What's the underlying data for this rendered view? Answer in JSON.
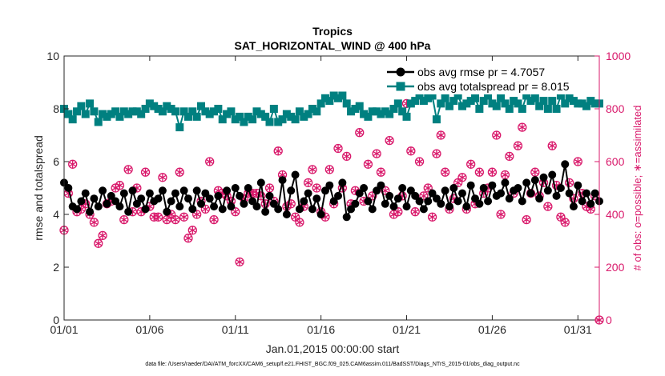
{
  "chart_data": {
    "type": "line",
    "title": "Tropics",
    "subtitle": "SAT_HORIZONTAL_WIND @ 400 hPa",
    "xlabel": "Jan.01,2015 00:00:00 start",
    "ylabel_left": "rmse and totalspread",
    "ylabel_right": "# of obs: o=possible; ∗=assimilated",
    "footnote": "data file: /Users/raeder/DAI/ATM_forcXX/CAM6_setup/f.e21.FHIST_BGC.f09_025.CAM6assim.011/BadSST/Diags_NTrS_2015-01/obs_diag_output.nc",
    "x_ticks": [
      {
        "day": 0,
        "label": "01/01"
      },
      {
        "day": 5,
        "label": "01/06"
      },
      {
        "day": 10,
        "label": "01/11"
      },
      {
        "day": 15,
        "label": "01/16"
      },
      {
        "day": 20,
        "label": "01/21"
      },
      {
        "day": 25,
        "label": "01/26"
      },
      {
        "day": 30,
        "label": "01/31"
      }
    ],
    "xlim": [
      0,
      31.25
    ],
    "ylim_left": [
      0,
      10
    ],
    "ylim_right": [
      0,
      1000
    ],
    "y_ticks_left": [
      "0",
      "2",
      "4",
      "6",
      "8",
      "10"
    ],
    "y_ticks_right": [
      "0",
      "200",
      "400",
      "600",
      "800",
      "1000"
    ],
    "legend": {
      "position": "top-right",
      "entries": [
        {
          "label": "obs avg rmse pr = 4.7057",
          "series": "rmse"
        },
        {
          "label": "obs avg totalspread pr = 8.015",
          "series": "totalspread"
        }
      ]
    },
    "colors": {
      "rmse": "#000000",
      "totalspread": "#008080",
      "obs": "#d9196b",
      "axis": "#262626"
    },
    "series": [
      {
        "name": "obs avg rmse",
        "axis": "left",
        "values": [
          5.2,
          5.0,
          4.3,
          4.2,
          4.5,
          4.8,
          4.1,
          4.6,
          4.3,
          4.9,
          4.4,
          4.7,
          4.5,
          4.3,
          4.8,
          4.1,
          4.9,
          4.4,
          4.6,
          4.2,
          4.8,
          4.5,
          4.6,
          4.9,
          4.1,
          4.5,
          4.8,
          4.3,
          4.9,
          4.6,
          4.2,
          4.9,
          4.4,
          4.8,
          4.6,
          4.3,
          4.7,
          4.2,
          4.9,
          4.3,
          5.0,
          4.7,
          4.4,
          5.0,
          4.5,
          4.3,
          5.2,
          4.1,
          4.7,
          4.4,
          4.2,
          5.3,
          4.0,
          4.9,
          5.5,
          4.2,
          4.5,
          4.8,
          4.2,
          4.6,
          4.0,
          4.9,
          5.1,
          4.5,
          4.7,
          5.2,
          3.9,
          4.2,
          4.4,
          4.8,
          5.0,
          4.5,
          4.2,
          4.9,
          5.1,
          4.4,
          4.7,
          4.3,
          4.6,
          5.0,
          4.3,
          4.9,
          4.7,
          4.5,
          4.2,
          4.5,
          4.8,
          4.6,
          4.4,
          4.9,
          4.3,
          5.0,
          4.5,
          4.8,
          4.3,
          5.1,
          4.6,
          4.4,
          5.0,
          4.5,
          5.1,
          4.7,
          4.8,
          5.2,
          4.6,
          4.9,
          5.0,
          4.5,
          5.2,
          4.8,
          5.3,
          4.6,
          5.4,
          4.9,
          5.5,
          4.7,
          5.0,
          5.9,
          4.8,
          4.3,
          5.1,
          4.5,
          4.8,
          4.4,
          4.8,
          4.5
        ]
      },
      {
        "name": "obs avg totalspread",
        "axis": "left",
        "values": [
          8.0,
          7.8,
          7.6,
          7.9,
          8.1,
          7.8,
          8.2,
          7.9,
          7.5,
          7.8,
          7.7,
          7.8,
          7.9,
          7.7,
          7.9,
          7.8,
          7.9,
          7.9,
          7.8,
          8.0,
          8.2,
          8.1,
          8.0,
          7.9,
          8.1,
          8.0,
          7.9,
          7.3,
          7.9,
          7.7,
          7.9,
          7.7,
          8.1,
          7.9,
          7.8,
          7.9,
          8.0,
          7.6,
          7.8,
          7.9,
          7.6,
          7.7,
          7.5,
          7.7,
          7.6,
          7.9,
          7.8,
          7.7,
          7.5,
          8.0,
          7.5,
          7.6,
          7.8,
          7.7,
          7.6,
          7.9,
          7.7,
          7.8,
          8.0,
          7.9,
          8.2,
          8.4,
          8.3,
          8.5,
          8.4,
          8.5,
          8.2,
          7.9,
          8.0,
          8.1,
          7.8,
          7.7,
          7.9,
          7.9,
          7.8,
          7.9,
          7.8,
          8.0,
          8.2,
          7.9,
          7.7,
          8.2,
          8.3,
          8.5,
          8.3,
          8.4,
          8.5,
          7.6,
          8.2,
          8.4,
          8.1,
          8.3,
          8.5,
          8.1,
          8.2,
          8.3,
          8.4,
          8.0,
          8.3,
          8.5,
          8.2,
          8.1,
          8.4,
          8.2,
          8.0,
          8.3,
          8.2,
          8.0,
          8.5,
          8.3,
          8.4,
          8.1,
          8.3,
          8.0,
          8.3,
          8.0,
          8.5,
          8.2,
          8.4,
          8.3,
          8.2,
          8.2,
          8.1,
          8.3,
          8.2,
          8.2
        ]
      },
      {
        "name": "# of obs possible",
        "axis": "right",
        "values": [
          340,
          480,
          590,
          410,
          420,
          440,
          400,
          370,
          290,
          320,
          440,
          450,
          500,
          510,
          380,
          570,
          410,
          500,
          410,
          560,
          430,
          390,
          390,
          540,
          380,
          400,
          380,
          560,
          390,
          310,
          340,
          400,
          450,
          420,
          600,
          380,
          490,
          480,
          470,
          450,
          410,
          220,
          460,
          480,
          480,
          480,
          470,
          440,
          500,
          450,
          640,
          550,
          430,
          440,
          390,
          370,
          430,
          520,
          570,
          500,
          410,
          390,
          570,
          440,
          650,
          500,
          620,
          440,
          490,
          710,
          450,
          590,
          470,
          630,
          560,
          490,
          680,
          400,
          410,
          470,
          820,
          640,
          410,
          600,
          470,
          500,
          390,
          630,
          700,
          560,
          420,
          460,
          520,
          540,
          420,
          590,
          440,
          560,
          480,
          500,
          560,
          700,
          400,
          550,
          620,
          480,
          660,
          730,
          380,
          480,
          560,
          470,
          520,
          430,
          660,
          510,
          390,
          370,
          520,
          460,
          600,
          480,
          430,
          420,
          470,
          0
        ]
      },
      {
        "name": "# of obs assimilated",
        "axis": "right",
        "values": [
          340,
          480,
          590,
          410,
          420,
          440,
          400,
          370,
          290,
          320,
          440,
          450,
          500,
          510,
          380,
          570,
          410,
          500,
          410,
          560,
          430,
          390,
          390,
          540,
          380,
          400,
          380,
          560,
          390,
          310,
          340,
          400,
          450,
          420,
          600,
          380,
          490,
          480,
          470,
          450,
          410,
          220,
          460,
          480,
          480,
          480,
          470,
          440,
          500,
          450,
          640,
          550,
          430,
          440,
          390,
          370,
          430,
          520,
          570,
          500,
          410,
          390,
          570,
          440,
          650,
          500,
          620,
          440,
          490,
          710,
          450,
          590,
          470,
          630,
          560,
          490,
          680,
          400,
          410,
          470,
          820,
          640,
          410,
          600,
          470,
          500,
          390,
          630,
          700,
          560,
          420,
          460,
          520,
          540,
          420,
          590,
          440,
          560,
          480,
          500,
          560,
          700,
          400,
          550,
          620,
          480,
          660,
          730,
          380,
          480,
          560,
          470,
          520,
          430,
          660,
          510,
          390,
          370,
          520,
          460,
          600,
          480,
          430,
          420,
          470,
          0
        ]
      }
    ]
  }
}
